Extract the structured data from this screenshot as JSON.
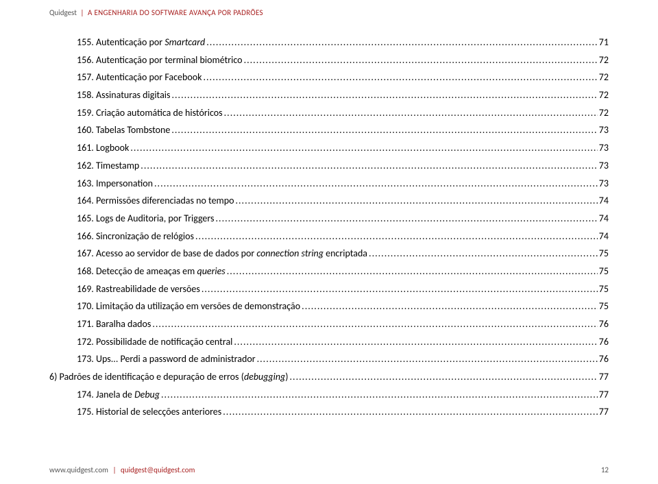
{
  "header": {
    "company": "Quidgest",
    "separator": "|",
    "tagline": "A ENGENHARIA DO SOFTWARE AVANÇA POR PADRÕES"
  },
  "toc": [
    {
      "num": "155.",
      "title": "Autenticação por ",
      "italic": "Smartcard",
      "page": "71"
    },
    {
      "num": "156.",
      "title": "Autenticação por terminal biométrico",
      "page": "72"
    },
    {
      "num": "157.",
      "title": "Autenticação por Facebook",
      "page": "72"
    },
    {
      "num": "158.",
      "title": "Assinaturas digitais",
      "page": "72"
    },
    {
      "num": "159.",
      "title": "Criação automática de históricos",
      "page": "72"
    },
    {
      "num": "160.",
      "title": "Tabelas Tombstone",
      "page": "73"
    },
    {
      "num": "161.",
      "title": "Logbook",
      "page": "73"
    },
    {
      "num": "162.",
      "title": "Timestamp",
      "page": "73"
    },
    {
      "num": "163.",
      "title": "Impersonation",
      "page": "73"
    },
    {
      "num": "164.",
      "title": "Permissões diferenciadas no tempo",
      "page": "74"
    },
    {
      "num": "165.",
      "title": "Logs de Auditoria, por Triggers",
      "page": "74"
    },
    {
      "num": "166.",
      "title": "Sincronização de relógios",
      "page": "74"
    },
    {
      "num": "167.",
      "title": "Acesso ao servidor de base de dados por ",
      "italic": "connection string",
      "tail": " encriptada",
      "page": "75"
    },
    {
      "num": "168.",
      "title": "Detecção de ameaças em ",
      "italic": "queries",
      "page": "75"
    },
    {
      "num": "169.",
      "title": "Rastreabilidade de versões",
      "page": "75"
    },
    {
      "num": "170.",
      "title": "Limitação da utilização em versões de demonstração",
      "page": "75"
    },
    {
      "num": "171.",
      "title": "Baralha dados",
      "page": "76"
    },
    {
      "num": "172.",
      "title": "Possibilidade de notificação central",
      "page": "76"
    },
    {
      "num": "173.",
      "title": "Ups... Perdi a password de administrador",
      "page": "76"
    },
    {
      "section": true,
      "title": "6) Padrões de identificação e depuração de erros (",
      "italic": "debugging",
      "tail": ")",
      "page": "77"
    },
    {
      "num": "174.",
      "title": "Janela de ",
      "italic": "Debug",
      "page": "77"
    },
    {
      "num": "175.",
      "title": "Historial de selecções anteriores",
      "page": "77"
    }
  ],
  "footer": {
    "url": "www.quidgest.com",
    "separator": "|",
    "email": "quidgest@quidgest.com",
    "page_number": "12"
  }
}
